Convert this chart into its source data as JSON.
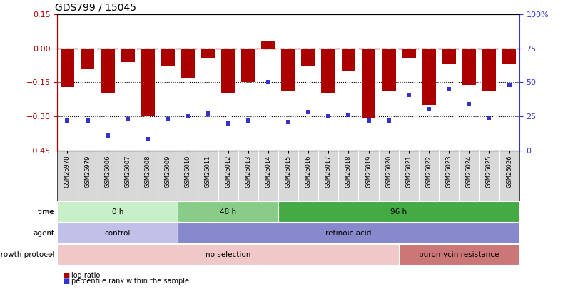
{
  "title": "GDS799 / 15045",
  "samples": [
    "GSM25978",
    "GSM25979",
    "GSM26006",
    "GSM26007",
    "GSM26008",
    "GSM26009",
    "GSM26010",
    "GSM26011",
    "GSM26012",
    "GSM26013",
    "GSM26014",
    "GSM26015",
    "GSM26016",
    "GSM26017",
    "GSM26018",
    "GSM26019",
    "GSM26020",
    "GSM26021",
    "GSM26022",
    "GSM26023",
    "GSM26024",
    "GSM26025",
    "GSM26026"
  ],
  "log_ratio": [
    -0.17,
    -0.09,
    -0.2,
    -0.06,
    -0.3,
    -0.08,
    -0.13,
    -0.04,
    -0.2,
    -0.15,
    0.03,
    -0.19,
    -0.08,
    -0.2,
    -0.1,
    -0.31,
    -0.19,
    -0.04,
    -0.25,
    -0.07,
    -0.16,
    -0.19,
    -0.07
  ],
  "percentile": [
    22,
    22,
    11,
    23,
    8,
    23,
    25,
    27,
    20,
    22,
    50,
    21,
    28,
    25,
    26,
    22,
    22,
    41,
    30,
    45,
    34,
    24,
    48
  ],
  "time_groups": [
    {
      "label": "0 h",
      "start": 0,
      "end": 6,
      "color": "#c8f0c8"
    },
    {
      "label": "48 h",
      "start": 6,
      "end": 11,
      "color": "#88cc88"
    },
    {
      "label": "96 h",
      "start": 11,
      "end": 23,
      "color": "#44aa44"
    }
  ],
  "agent_groups": [
    {
      "label": "control",
      "start": 0,
      "end": 6,
      "color": "#c0c0e8"
    },
    {
      "label": "retinoic acid",
      "start": 6,
      "end": 23,
      "color": "#8888cc"
    }
  ],
  "growth_groups": [
    {
      "label": "no selection",
      "start": 0,
      "end": 17,
      "color": "#f0c8c8"
    },
    {
      "label": "puromycin resistance",
      "start": 17,
      "end": 23,
      "color": "#cc7777"
    }
  ],
  "bar_color": "#aa0000",
  "dot_color": "#3333cc",
  "ylim_left": [
    -0.45,
    0.15
  ],
  "ylim_right": [
    0,
    100
  ],
  "yticks_left": [
    -0.45,
    -0.3,
    -0.15,
    0.0,
    0.15
  ],
  "yticks_right": [
    0,
    25,
    50,
    75,
    100
  ],
  "row_labels": [
    "time",
    "agent",
    "growth protocol"
  ],
  "background_color": "#ffffff"
}
